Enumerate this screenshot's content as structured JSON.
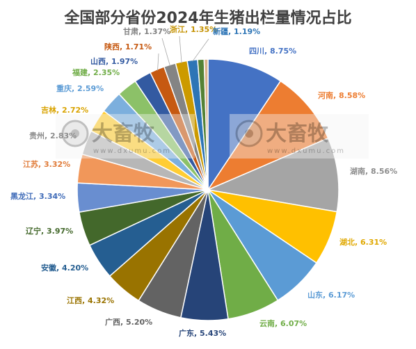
{
  "chart_data": {
    "type": "pie",
    "title": "全国部分省份2024年生猪出栏量情况占比",
    "slices": [
      {
        "label": "四川",
        "value": 8.75,
        "value_label": "8.75%",
        "color": "#4472c4",
        "label_color": "#4472c4"
      },
      {
        "label": "河南",
        "value": 8.58,
        "value_label": "8.58%",
        "color": "#ed7d31",
        "label_color": "#ed7d31"
      },
      {
        "label": "湖南",
        "value": 8.56,
        "value_label": "8.56%",
        "color": "#a5a5a5",
        "label_color": "#8c8c8c"
      },
      {
        "label": "湖北",
        "value": 6.31,
        "value_label": "6.31%",
        "color": "#ffc000",
        "label_color": "#e0a800"
      },
      {
        "label": "山东",
        "value": 6.17,
        "value_label": "6.17%",
        "color": "#5b9bd5",
        "label_color": "#5b9bd5"
      },
      {
        "label": "云南",
        "value": 6.07,
        "value_label": "6.07%",
        "color": "#70ad47",
        "label_color": "#70ad47"
      },
      {
        "label": "广东",
        "value": 5.43,
        "value_label": "5.43%",
        "color": "#264478",
        "label_color": "#264478"
      },
      {
        "label": "广西",
        "value": 5.2,
        "value_label": "5.20%",
        "color": "#636363",
        "label_color": "#636363"
      },
      {
        "label": "江西",
        "value": 4.32,
        "value_label": "4.32%",
        "color": "#997300",
        "label_color": "#997300"
      },
      {
        "label": "安徽",
        "value": 4.2,
        "value_label": "4.20%",
        "color": "#255e91",
        "label_color": "#255e91"
      },
      {
        "label": "辽宁",
        "value": 3.97,
        "value_label": "3.97%",
        "color": "#43682b",
        "label_color": "#43682b"
      },
      {
        "label": "黑龙江",
        "value": 3.34,
        "value_label": "3.34%",
        "color": "#698ed0",
        "label_color": "#3f6bb8"
      },
      {
        "label": "江苏",
        "value": 3.32,
        "value_label": "3.32%",
        "color": "#f1975a",
        "label_color": "#e07b39"
      },
      {
        "label": "贵州",
        "value": 2.83,
        "value_label": "2.83%",
        "color": "#b7b7b7",
        "label_color": "#8c8c8c"
      },
      {
        "label": "吉林",
        "value": 2.72,
        "value_label": "2.72%",
        "color": "#ffcd33",
        "label_color": "#d9a300"
      },
      {
        "label": "重庆",
        "value": 2.59,
        "value_label": "2.59%",
        "color": "#7cafdd",
        "label_color": "#5b9bd5"
      },
      {
        "label": "福建",
        "value": 2.35,
        "value_label": "2.35%",
        "color": "#8cc168",
        "label_color": "#70ad47"
      },
      {
        "label": "山西",
        "value": 1.97,
        "value_label": "1.97%",
        "color": "#335aa1",
        "label_color": "#335aa1"
      },
      {
        "label": "陕西",
        "value": 1.71,
        "value_label": "1.71%",
        "color": "#c65911",
        "label_color": "#c65911"
      },
      {
        "label": "甘肃",
        "value": 1.37,
        "value_label": "1.37%",
        "color": "#848484",
        "label_color": "#7f7f7f"
      },
      {
        "label": "浙江",
        "value": 1.35,
        "value_label": "1.35%",
        "color": "#cc9a00",
        "label_color": "#c49100"
      },
      {
        "label": "新疆",
        "value": 1.19,
        "value_label": "1.19%",
        "color": "#2e75b6",
        "label_color": "#2e75b6"
      },
      {
        "label": "",
        "value": 0.75,
        "value_label": "",
        "color": "#548235",
        "label_color": "#548235"
      },
      {
        "label": "",
        "value": 0.44,
        "value_label": "",
        "color": "#d9b38c",
        "label_color": "#d9b38c"
      }
    ]
  },
  "watermark": {
    "brand": "大畜牧",
    "url": "www.dxumu.com"
  }
}
